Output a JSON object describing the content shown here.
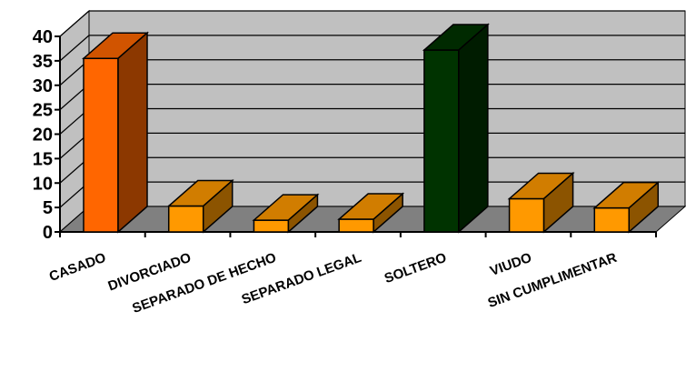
{
  "chart_data": {
    "type": "bar",
    "categories": [
      "CASADO",
      "DIVORCIADO",
      "SEPARADO DE HECHO",
      "SEPARADO LEGAL",
      "SOLTERO",
      "VIUDO",
      "SIN CUMPLIMENTAR"
    ],
    "values": [
      35.5,
      5.3,
      2.4,
      2.6,
      37.2,
      6.8,
      4.9
    ],
    "bar_colors": [
      "#ff6600",
      "#ff9900",
      "#ff9900",
      "#ff9900",
      "#003300",
      "#ff9900",
      "#ff9900"
    ],
    "ylim": [
      0,
      40
    ],
    "yticks": [
      "0",
      "5",
      "10",
      "15",
      "20",
      "25",
      "30",
      "35",
      "40"
    ],
    "title": "",
    "xlabel": "",
    "ylabel": "",
    "grid": true,
    "style": "3d-column",
    "wall_color": "#c0c0c0",
    "floor_color": "#808080"
  }
}
